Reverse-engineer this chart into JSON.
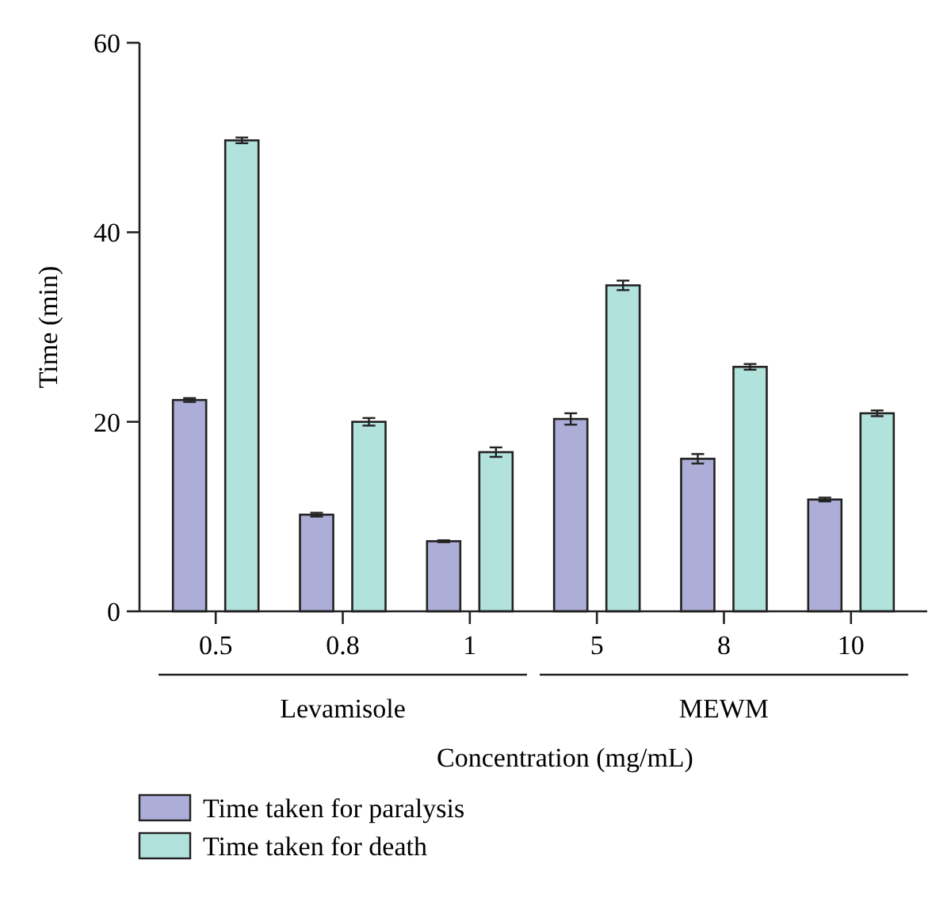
{
  "chart_data": {
    "type": "bar",
    "xlabel": "Concentration (mg/mL)",
    "ylabel": "Time (min)",
    "categories": [
      "0.5",
      "0.8",
      "1",
      "5",
      "8",
      "10"
    ],
    "series": [
      {
        "name": "Time taken for paralysis",
        "color": "#adaed8",
        "values": [
          22.3,
          10.2,
          7.4,
          20.3,
          16.1,
          11.8
        ],
        "errors": [
          0.2,
          0.2,
          0.1,
          0.6,
          0.5,
          0.2
        ]
      },
      {
        "name": "Time taken for death",
        "color": "#b2e2dc",
        "values": [
          49.7,
          20.0,
          16.8,
          34.4,
          25.8,
          20.9
        ],
        "errors": [
          0.3,
          0.4,
          0.5,
          0.5,
          0.3,
          0.3
        ]
      }
    ],
    "annotations": [
      "Levamisole",
      "MEWM"
    ],
    "ylim": [
      0,
      60
    ],
    "yticks": [
      0,
      20,
      40,
      60
    ],
    "grid": false,
    "legend": "bottom"
  }
}
